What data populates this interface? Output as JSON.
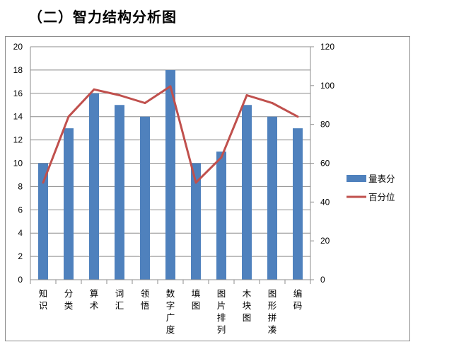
{
  "page": {
    "heading": "（二）智力结构分析图"
  },
  "chart_data": {
    "type": "bar",
    "categories": [
      "知识",
      "分类",
      "算术",
      "词汇",
      "领悟",
      "数字广度",
      "填图",
      "图片排列",
      "木块图",
      "图形拼凑",
      "编码"
    ],
    "series": [
      {
        "name": "量表分",
        "type": "bar",
        "axis": "left",
        "color": "#4f81bd",
        "values": [
          10,
          13,
          16,
          15,
          14,
          18,
          10,
          11,
          15,
          14,
          13
        ]
      },
      {
        "name": "百分位",
        "type": "line",
        "axis": "right",
        "color": "#c0504d",
        "values": [
          50,
          84,
          98,
          95,
          91,
          99.6,
          50,
          63,
          95,
          91,
          84
        ]
      }
    ],
    "y_left": {
      "min": 0,
      "max": 20,
      "step": 2,
      "ticks": [
        "0",
        "2",
        "4",
        "6",
        "8",
        "10",
        "12",
        "14",
        "16",
        "18",
        "20"
      ]
    },
    "y_right": {
      "min": 0,
      "max": 120,
      "step": 20,
      "ticks": [
        "0",
        "20",
        "40",
        "60",
        "80",
        "100",
        "120"
      ]
    },
    "grid": true,
    "legend_position": "right"
  }
}
